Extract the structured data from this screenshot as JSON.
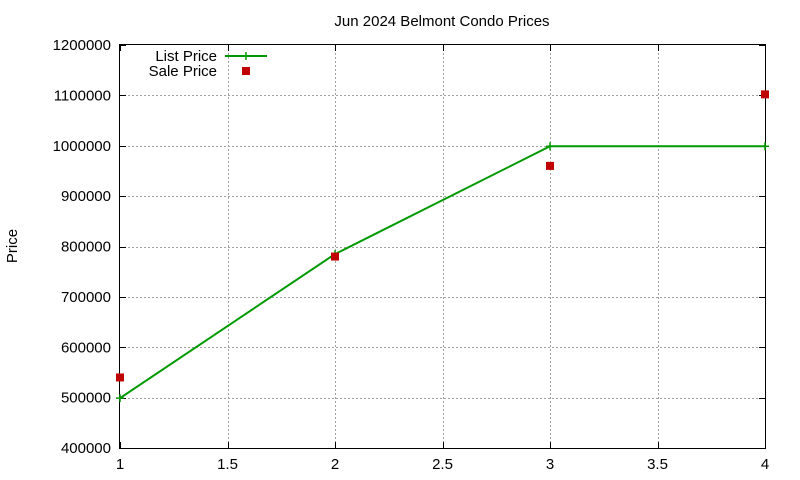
{
  "chart_data": {
    "type": "line",
    "title": "Jun 2024 Belmont Condo Prices",
    "xlabel": "",
    "ylabel": "Price",
    "xlim": [
      1,
      4
    ],
    "ylim": [
      400000,
      1200000
    ],
    "x_ticks": [
      1,
      1.5,
      2,
      2.5,
      3,
      3.5,
      4
    ],
    "x_tick_labels": [
      "1",
      "1.5",
      "2",
      "2.5",
      "3",
      "3.5",
      "4"
    ],
    "y_ticks": [
      400000,
      500000,
      600000,
      700000,
      800000,
      900000,
      1000000,
      1100000,
      1200000
    ],
    "y_tick_labels": [
      "400000",
      "500000",
      "600000",
      "700000",
      "800000",
      "900000",
      "1000000",
      "1100000",
      "1200000"
    ],
    "grid": true,
    "legend_position": "top-left",
    "series": [
      {
        "name": "List Price",
        "style": "line-with-plus-markers",
        "color": "#009900",
        "x": [
          1,
          2,
          3,
          4
        ],
        "y": [
          499000,
          785000,
          999000,
          999000
        ]
      },
      {
        "name": "Sale Price",
        "style": "square-markers",
        "color": "#c00000",
        "x": [
          1,
          2,
          3,
          4
        ],
        "y": [
          540000,
          780000,
          960000,
          1102000
        ]
      }
    ]
  }
}
